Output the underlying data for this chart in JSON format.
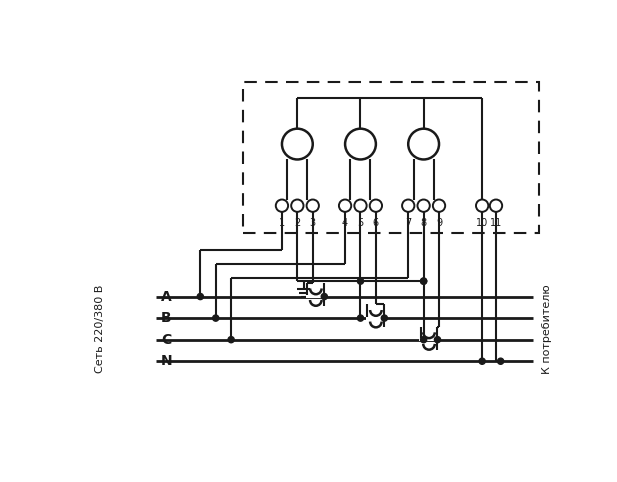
{
  "fig_width": 6.17,
  "fig_height": 4.82,
  "bg_color": "#ffffff",
  "line_color": "#1a1a1a",
  "left_label": "Сеть 220/380 В",
  "right_label": "К потребителю",
  "terminal_labels": [
    "1",
    "2",
    "3",
    "4",
    "5",
    "6",
    "7",
    "8",
    "9",
    "10",
    "11"
  ]
}
